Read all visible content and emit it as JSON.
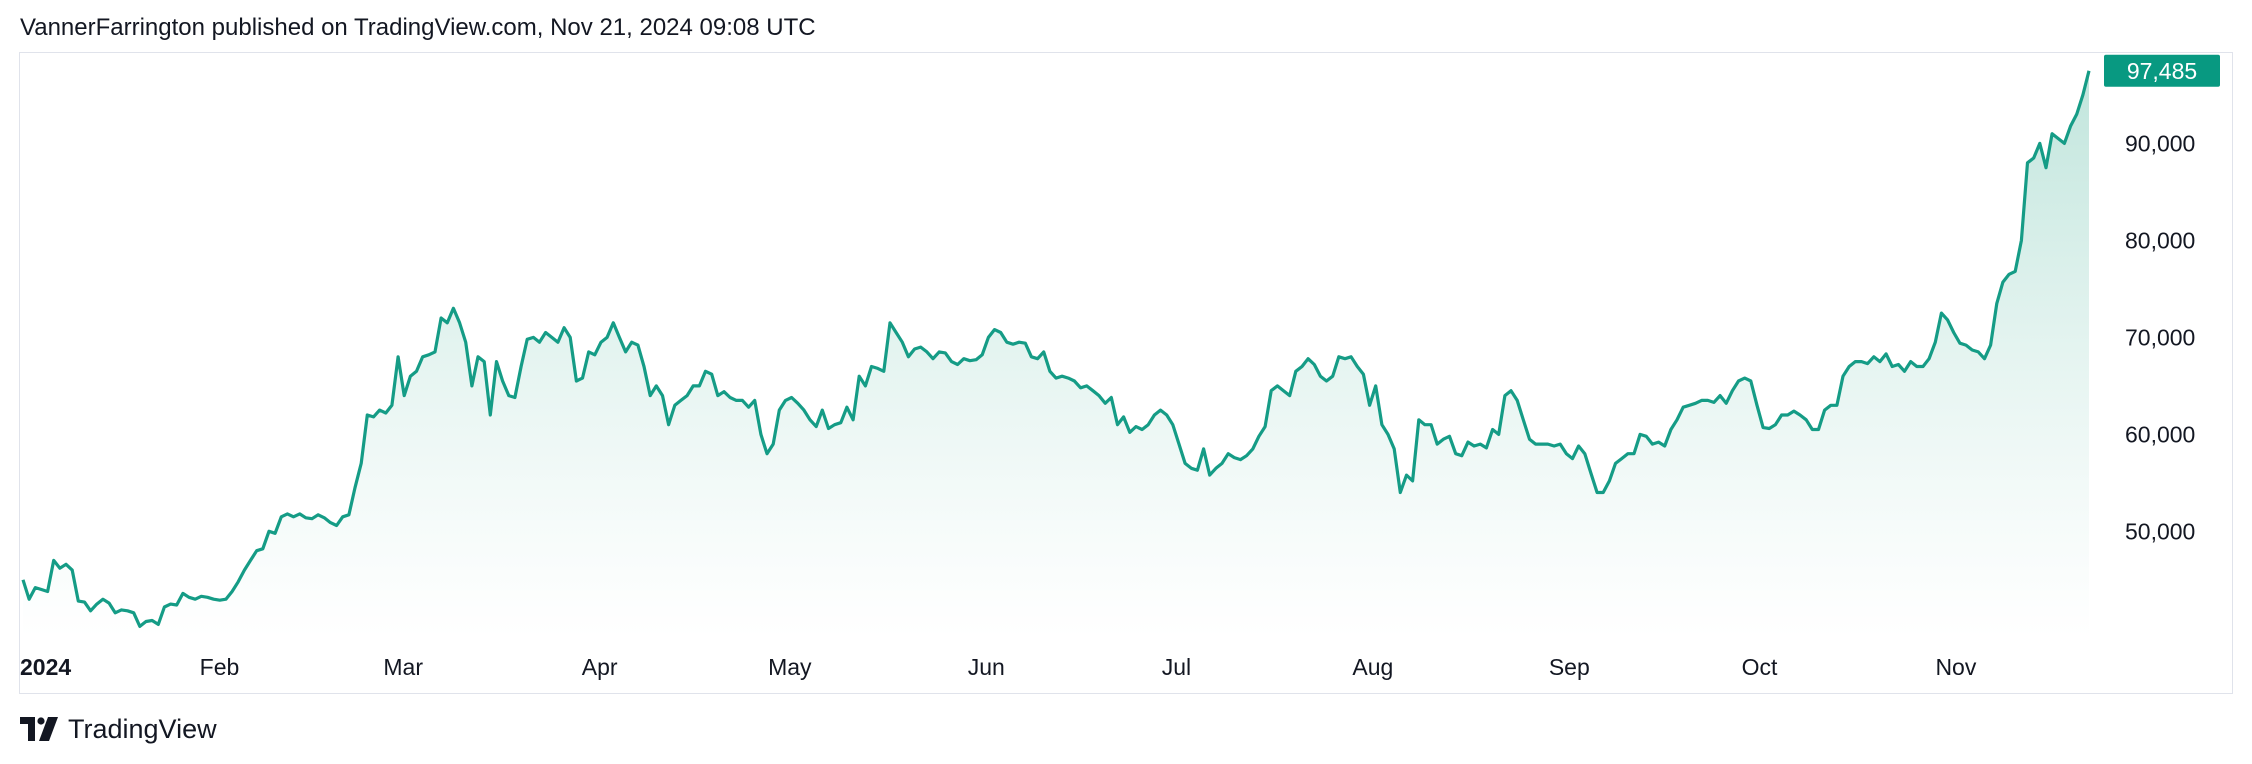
{
  "header": {
    "attribution": "VannerFarrington published on TradingView.com, Nov 21, 2024 09:08 UTC"
  },
  "footer": {
    "brand": "TradingView",
    "logo_icon": "tradingview-logo-icon"
  },
  "colors": {
    "line": "#159C86",
    "fill_top": "#b9e2d8",
    "fill_bottom": "#ffffff",
    "price_badge": "#089981",
    "text": "#131722",
    "border": "#e0e3eb"
  },
  "chart_data": {
    "type": "area",
    "series": [
      {
        "values": [
          45000,
          43000,
          44200,
          44000,
          43800,
          47000,
          46200,
          46600,
          46000,
          42800,
          42700,
          41800,
          42500,
          43000,
          42600,
          41600,
          41900,
          41800,
          41600,
          40200,
          40700,
          40800,
          40400,
          42200,
          42500,
          42400,
          43600,
          43200,
          43000,
          43300,
          43200,
          43000,
          42900,
          43000,
          43800,
          44800,
          46000,
          47000,
          48000,
          48200,
          50000,
          49800,
          51500,
          51800,
          51500,
          51800,
          51400,
          51300,
          51700,
          51400,
          50900,
          50600,
          51500,
          51700,
          54500,
          57000,
          62000,
          61800,
          62500,
          62200,
          63000,
          68000,
          64000,
          66000,
          66500,
          68000,
          68200,
          68500,
          72000,
          71500,
          73000,
          71500,
          69500,
          65000,
          68000,
          67500,
          62000,
          67500,
          65500,
          64000,
          63800,
          67000,
          69800,
          70000,
          69500,
          70500,
          70000,
          69500,
          71000,
          70000,
          65500,
          65800,
          68500,
          68200,
          69500,
          70000,
          71500,
          70000,
          68500,
          69500,
          69200,
          67000,
          64000,
          65000,
          64000,
          61000,
          63000,
          63500,
          64000,
          65000,
          65000,
          66500,
          66200,
          64000,
          64400,
          63800,
          63500,
          63500,
          62800,
          63500,
          60000,
          58000,
          59000,
          62500,
          63500,
          63800,
          63200,
          62500,
          61500,
          60800,
          62500,
          60600,
          61000,
          61200,
          62800,
          61500,
          66000,
          65000,
          67000,
          66800,
          66500,
          71500,
          70500,
          69500,
          68000,
          68800,
          69000,
          68500,
          67800,
          68500,
          68400,
          67500,
          67200,
          67800,
          67600,
          67700,
          68200,
          70000,
          70800,
          70500,
          69500,
          69300,
          69500,
          69400,
          68000,
          67800,
          68500,
          66500,
          65800,
          66000,
          65800,
          65500,
          64800,
          65000,
          64500,
          64000,
          63200,
          63800,
          61000,
          61800,
          60200,
          60800,
          60500,
          61000,
          62000,
          62500,
          62000,
          61000,
          59000,
          57000,
          56500,
          56300,
          58500,
          55800,
          56500,
          57000,
          58000,
          57600,
          57400,
          57800,
          58500,
          59800,
          60800,
          64500,
          65000,
          64500,
          64000,
          66500,
          67000,
          67800,
          67200,
          66000,
          65500,
          66000,
          68000,
          67800,
          68000,
          67000,
          66200,
          63000,
          65000,
          61000,
          60000,
          58500,
          54000,
          55800,
          55200,
          61500,
          61000,
          61000,
          59000,
          59500,
          59800,
          58000,
          57800,
          59200,
          58800,
          59000,
          58600,
          60500,
          60000,
          64000,
          64500,
          63500,
          61500,
          59500,
          59000,
          59000,
          59000,
          58800,
          59000,
          58000,
          57500,
          58800,
          58000,
          56000,
          54000,
          54000,
          55200,
          57000,
          57500,
          58000,
          58000,
          60000,
          59800,
          59000,
          59200,
          58800,
          60500,
          61500,
          62800,
          63000,
          63200,
          63500,
          63500,
          63300,
          64000,
          63200,
          64500,
          65500,
          65800,
          65500,
          63000,
          60700,
          60600,
          61000,
          62000,
          62000,
          62400,
          62000,
          61500,
          60500,
          60500,
          62500,
          63000,
          63000,
          66000,
          67000,
          67500,
          67500,
          67300,
          68000,
          67500,
          68300,
          67000,
          67200,
          66500,
          67500,
          67000,
          67000,
          67800,
          69500,
          72500,
          71800,
          70500,
          69400,
          69200,
          68700,
          68500,
          67800,
          69200,
          73500,
          75700,
          76500,
          76800,
          80000,
          88000,
          88500,
          90000,
          87500,
          91000,
          90500,
          90000,
          91800,
          93000,
          95000,
          97485
        ]
      }
    ],
    "x_ticks": [
      "2024",
      "Feb",
      "Mar",
      "Apr",
      "May",
      "Jun",
      "Jul",
      "Aug",
      "Sep",
      "Oct",
      "Nov"
    ],
    "x_tick_days": [
      0,
      31,
      60,
      91,
      121,
      152,
      182,
      213,
      244,
      274,
      305
    ],
    "days_total": 326,
    "y_ticks": [
      "50,000",
      "60,000",
      "70,000",
      "80,000",
      "90,000"
    ],
    "y_tick_values": [
      50000,
      60000,
      70000,
      80000,
      90000
    ],
    "ylim": [
      39000,
      98500
    ],
    "last_price_label": "97,485",
    "last_price": 97485,
    "grid": false,
    "title": "",
    "xlabel": "",
    "ylabel": ""
  }
}
